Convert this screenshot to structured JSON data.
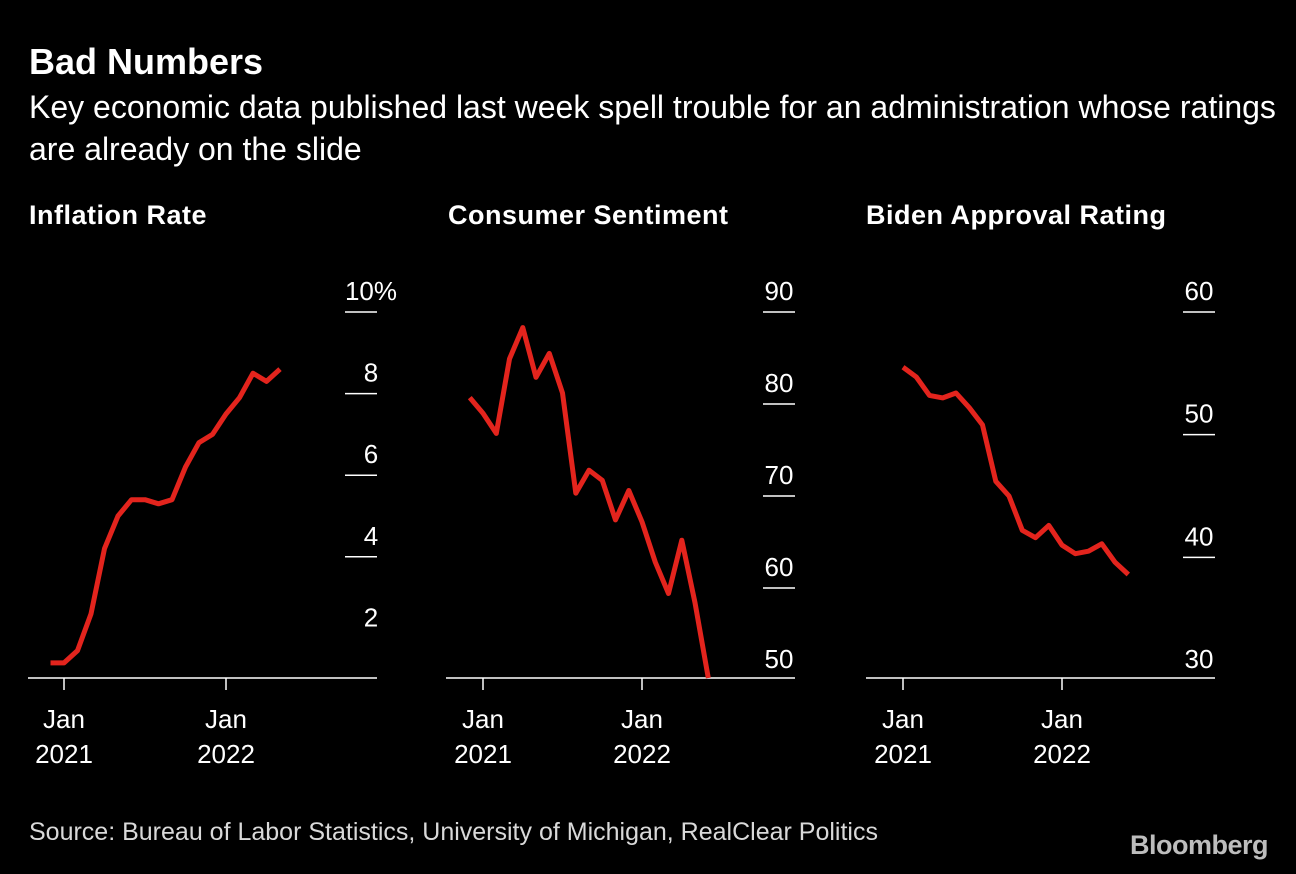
{
  "title": "Bad Numbers",
  "subtitle": "Key economic data published last week spell trouble for an administration whose ratings are already on the slide",
  "source": "Source: Bureau of Labor Statistics, University of Michigan, RealClear Politics",
  "logo": "Bloomberg",
  "colors": {
    "background": "#000000",
    "line": "#e3241d",
    "text": "#ffffff",
    "axis": "#ffffff"
  },
  "chart_data": [
    {
      "type": "line",
      "title": "Inflation Rate",
      "x_ticks": [
        {
          "x": "2021-01",
          "line1": "Jan",
          "line2": "2021"
        },
        {
          "x": "2022-01",
          "line1": "Jan",
          "line2": "2022"
        }
      ],
      "y_ticks": [
        "10%",
        "8",
        "6",
        "4",
        "2"
      ],
      "y_tick_values": [
        10,
        8,
        6,
        4,
        2
      ],
      "ylim": [
        0,
        10
      ],
      "grid": false,
      "series": [
        {
          "x": [
            "2020-12",
            "2021-01",
            "2021-02",
            "2021-03",
            "2021-04",
            "2021-05",
            "2021-06",
            "2021-07",
            "2021-08",
            "2021-09",
            "2021-10",
            "2021-11",
            "2021-12",
            "2022-01",
            "2022-02",
            "2022-03",
            "2022-04",
            "2022-05"
          ],
          "values": [
            1.4,
            1.4,
            1.7,
            2.6,
            4.2,
            5.0,
            5.4,
            5.4,
            5.3,
            5.4,
            6.2,
            6.8,
            7.0,
            7.5,
            7.9,
            8.5,
            8.3,
            8.6
          ]
        }
      ]
    },
    {
      "type": "line",
      "title": "Consumer Sentiment",
      "x_ticks": [
        {
          "x": "2021-01",
          "line1": "Jan",
          "line2": "2021"
        },
        {
          "x": "2022-01",
          "line1": "Jan",
          "line2": "2022"
        }
      ],
      "y_ticks": [
        "90",
        "80",
        "70",
        "60",
        "50"
      ],
      "y_tick_values": [
        90,
        80,
        70,
        60,
        50
      ],
      "ylim": [
        47,
        90
      ],
      "grid": false,
      "series": [
        {
          "x": [
            "2020-12",
            "2021-01",
            "2021-02",
            "2021-03",
            "2021-04",
            "2021-05",
            "2021-06",
            "2021-07",
            "2021-08",
            "2021-09",
            "2021-10",
            "2021-11",
            "2021-12",
            "2022-01",
            "2022-02",
            "2022-03",
            "2022-04",
            "2022-05",
            "2022-06"
          ],
          "values": [
            80.7,
            79.0,
            76.8,
            84.9,
            88.3,
            82.9,
            85.5,
            81.2,
            70.3,
            72.8,
            71.7,
            67.4,
            70.6,
            67.2,
            62.8,
            59.4,
            65.2,
            58.4,
            50.0
          ]
        }
      ]
    },
    {
      "type": "line",
      "title": "Biden Approval Rating",
      "x_ticks": [
        {
          "x": "2021-01",
          "line1": "Jan",
          "line2": "2021"
        },
        {
          "x": "2022-01",
          "line1": "Jan",
          "line2": "2022"
        }
      ],
      "y_ticks": [
        "60",
        "50",
        "40",
        "30"
      ],
      "y_tick_values": [
        60,
        50,
        40,
        30
      ],
      "ylim": [
        30,
        60
      ],
      "grid": false,
      "series": [
        {
          "x": [
            "2021-01",
            "2021-02",
            "2021-03",
            "2021-04",
            "2021-05",
            "2021-06",
            "2021-07",
            "2021-08",
            "2021-09",
            "2021-10",
            "2021-11",
            "2021-12",
            "2022-01",
            "2022-02",
            "2022-03",
            "2022-04",
            "2022-05",
            "2022-06"
          ],
          "values": [
            55.5,
            54.7,
            53.2,
            53.0,
            53.4,
            52.2,
            50.8,
            46.2,
            45.0,
            42.2,
            41.6,
            42.6,
            41.0,
            40.3,
            40.5,
            41.1,
            39.6,
            38.6
          ]
        }
      ]
    }
  ]
}
